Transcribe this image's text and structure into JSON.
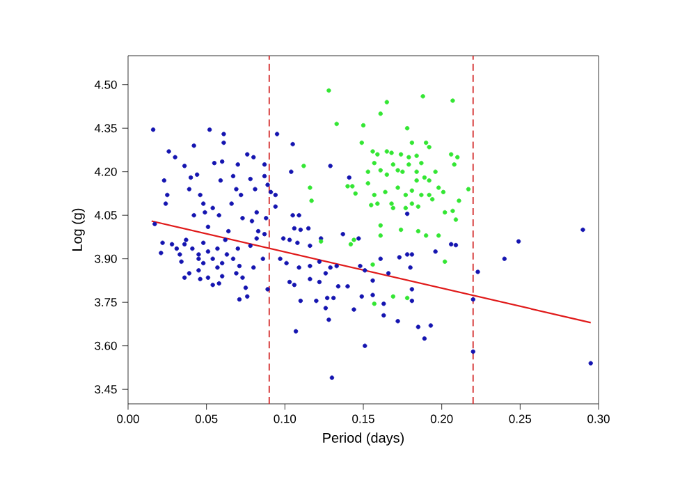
{
  "chart_data": {
    "type": "scatter",
    "xlabel": "Period (days)",
    "ylabel": "Log (g)",
    "xlim": [
      0,
      0.3
    ],
    "ylim": [
      3.4,
      4.6
    ],
    "xticks": [
      {
        "value": 0,
        "label": "0.00"
      },
      0.05,
      {
        "value": 0.1,
        "label": "0.10"
      },
      0.15,
      {
        "value": 0.2,
        "label": "0.20"
      },
      0.25,
      {
        "value": 0.3,
        "label": "0.30"
      }
    ],
    "yticks": [
      3.45,
      {
        "value": 3.6,
        "label": "3.60"
      },
      3.75,
      {
        "value": 3.9,
        "label": "3.90"
      },
      4.05,
      {
        "value": 4.2,
        "label": "4.20"
      },
      4.35,
      {
        "value": 4.5,
        "label": "4.50"
      }
    ],
    "grid": false,
    "ref_lines": [
      {
        "axis": "x",
        "value": 0.09,
        "color": "#d42a2a",
        "line_style": "dashed"
      },
      {
        "axis": "x",
        "value": 0.22,
        "color": "#d42a2a",
        "line_style": "dashed"
      }
    ],
    "series": [
      {
        "color": "#1414b0",
        "marker": "circle",
        "x": [
          0.016,
          0.017,
          0.026,
          0.03,
          0.023,
          0.025,
          0.024,
          0.022,
          0.021,
          0.028,
          0.033,
          0.034,
          0.036,
          0.042,
          0.04,
          0.044,
          0.039,
          0.036,
          0.039,
          0.045,
          0.042,
          0.037,
          0.041,
          0.046,
          0.048,
          0.049,
          0.045,
          0.048,
          0.051,
          0.052,
          0.061,
          0.061,
          0.055,
          0.06,
          0.059,
          0.054,
          0.058,
          0.051,
          0.054,
          0.057,
          0.051,
          0.046,
          0.054,
          0.058,
          0.06,
          0.062,
          0.064,
          0.066,
          0.067,
          0.069,
          0.07,
          0.072,
          0.07,
          0.067,
          0.071,
          0.069,
          0.073,
          0.075,
          0.071,
          0.076,
          0.073,
          0.076,
          0.08,
          0.078,
          0.081,
          0.082,
          0.079,
          0.083,
          0.078,
          0.082,
          0.086,
          0.08,
          0.087,
          0.087,
          0.089,
          0.088,
          0.087,
          0.089,
          0.091,
          0.045,
          0.048,
          0.057,
          0.06,
          0.063,
          0.036,
          0.031,
          0.095,
          0.105,
          0.104,
          0.094,
          0.094,
          0.109,
          0.105,
          0.11,
          0.106,
          0.115,
          0.099,
          0.103,
          0.108,
          0.116,
          0.123,
          0.097,
          0.101,
          0.109,
          0.116,
          0.122,
          0.126,
          0.129,
          0.133,
          0.137,
          0.141,
          0.129,
          0.103,
          0.106,
          0.116,
          0.122,
          0.127,
          0.131,
          0.134,
          0.14,
          0.144,
          0.149,
          0.11,
          0.12,
          0.126,
          0.128,
          0.107,
          0.148,
          0.151,
          0.147,
          0.156,
          0.161,
          0.166,
          0.156,
          0.163,
          0.163,
          0.172,
          0.151,
          0.13,
          0.173,
          0.178,
          0.181,
          0.18,
          0.181,
          0.178,
          0.181,
          0.185,
          0.193,
          0.189,
          0.196,
          0.206,
          0.209,
          0.22,
          0.22,
          0.223,
          0.24,
          0.249,
          0.29,
          0.295
        ],
        "values": [
          4.345,
          4.02,
          4.27,
          4.25,
          4.17,
          4.12,
          4.09,
          3.955,
          3.92,
          3.95,
          3.915,
          3.89,
          4.22,
          4.29,
          4.18,
          4.19,
          4.14,
          3.835,
          3.85,
          3.86,
          4.05,
          3.965,
          3.935,
          4.12,
          4.09,
          4.06,
          3.915,
          3.955,
          3.925,
          4.345,
          4.33,
          4.3,
          4.23,
          4.235,
          4.17,
          4.075,
          4.05,
          4.01,
          3.9,
          3.87,
          3.835,
          3.83,
          3.81,
          3.815,
          3.84,
          3.965,
          3.995,
          4.09,
          4.185,
          4.14,
          4.225,
          4.12,
          3.935,
          3.9,
          3.875,
          3.85,
          3.835,
          3.8,
          3.76,
          3.77,
          4.04,
          4.26,
          4.25,
          4.175,
          4.14,
          4.06,
          4.03,
          3.995,
          3.945,
          3.97,
          3.9,
          3.87,
          4.185,
          4.225,
          4.155,
          4.04,
          3.985,
          3.795,
          4.13,
          3.9,
          3.885,
          3.935,
          3.885,
          3.915,
          3.95,
          3.935,
          4.33,
          4.295,
          4.2,
          4.12,
          4.08,
          4.05,
          4.05,
          4.0,
          4.005,
          4.005,
          3.97,
          3.965,
          3.955,
          3.945,
          3.97,
          3.9,
          3.885,
          3.87,
          3.875,
          3.89,
          3.85,
          3.87,
          3.875,
          3.985,
          4.18,
          4.22,
          3.82,
          3.81,
          3.83,
          3.82,
          3.765,
          3.765,
          3.805,
          3.805,
          3.725,
          3.77,
          3.755,
          3.755,
          3.73,
          3.69,
          3.65,
          3.875,
          3.86,
          3.97,
          3.825,
          3.9,
          3.85,
          3.775,
          3.745,
          3.705,
          3.685,
          3.6,
          3.49,
          3.905,
          3.915,
          3.915,
          3.87,
          3.795,
          4.055,
          3.755,
          3.665,
          3.67,
          3.625,
          3.925,
          3.95,
          3.947,
          3.76,
          3.58,
          3.855,
          3.9,
          3.96,
          4.0,
          3.54
        ]
      },
      {
        "color": "#33e633",
        "marker": "circle",
        "x": [
          0.128,
          0.133,
          0.112,
          0.116,
          0.117,
          0.165,
          0.161,
          0.15,
          0.149,
          0.14,
          0.143,
          0.145,
          0.153,
          0.156,
          0.159,
          0.165,
          0.168,
          0.174,
          0.179,
          0.184,
          0.181,
          0.19,
          0.192,
          0.178,
          0.188,
          0.207,
          0.157,
          0.161,
          0.165,
          0.169,
          0.172,
          0.175,
          0.179,
          0.184,
          0.187,
          0.189,
          0.192,
          0.196,
          0.198,
          0.201,
          0.153,
          0.157,
          0.159,
          0.155,
          0.164,
          0.168,
          0.172,
          0.177,
          0.181,
          0.184,
          0.187,
          0.192,
          0.177,
          0.169,
          0.181,
          0.185,
          0.194,
          0.202,
          0.207,
          0.209,
          0.206,
          0.21,
          0.208,
          0.217,
          0.211,
          0.161,
          0.161,
          0.174,
          0.185,
          0.19,
          0.198,
          0.202,
          0.156,
          0.144,
          0.142,
          0.123,
          0.169,
          0.178,
          0.157
        ],
        "values": [
          4.48,
          4.365,
          4.22,
          4.145,
          4.1,
          4.44,
          4.4,
          4.36,
          4.3,
          4.15,
          4.15,
          4.125,
          4.2,
          4.27,
          4.26,
          4.27,
          4.265,
          4.26,
          4.25,
          4.255,
          4.3,
          4.3,
          4.285,
          4.35,
          4.46,
          4.445,
          4.23,
          4.205,
          4.19,
          4.225,
          4.205,
          4.2,
          4.225,
          4.2,
          4.23,
          4.18,
          4.17,
          4.2,
          4.145,
          4.13,
          4.16,
          4.12,
          4.09,
          4.085,
          4.13,
          4.09,
          4.145,
          4.12,
          4.135,
          4.17,
          4.12,
          4.12,
          4.075,
          4.075,
          4.09,
          4.08,
          4.105,
          4.06,
          4.065,
          4.035,
          4.26,
          4.25,
          4.225,
          4.14,
          4.1,
          4.015,
          3.98,
          4.0,
          3.995,
          3.98,
          3.98,
          3.89,
          3.88,
          3.965,
          3.95,
          3.96,
          3.77,
          3.765,
          3.745
        ]
      },
      {
        "type": "line",
        "color": "#e01a1a",
        "marker": "none",
        "x": [
          0.015,
          0.295
        ],
        "values": [
          4.03,
          3.68
        ]
      }
    ]
  }
}
